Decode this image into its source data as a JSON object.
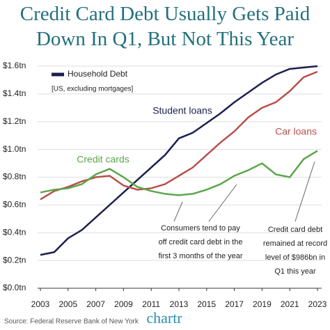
{
  "chart_data": {
    "type": "line",
    "title": "Credit Card Debt Usually Gets Paid Down In Q1, But Not This Year",
    "legend_title": "Household Debt",
    "subtitle": "[US, excluding mortgages]",
    "x": [
      2003,
      2004,
      2005,
      2006,
      2007,
      2008,
      2009,
      2010,
      2011,
      2012,
      2013,
      2014,
      2015,
      2016,
      2017,
      2018,
      2019,
      2020,
      2021,
      2022,
      2023
    ],
    "series": [
      {
        "name": "Student loans",
        "color": "#1b1f4f",
        "values": [
          0.24,
          0.26,
          0.36,
          0.42,
          0.51,
          0.6,
          0.69,
          0.78,
          0.87,
          0.96,
          1.08,
          1.12,
          1.19,
          1.26,
          1.34,
          1.41,
          1.48,
          1.54,
          1.58,
          1.59,
          1.6
        ]
      },
      {
        "name": "Car loans",
        "color": "#b8504b",
        "values": [
          0.64,
          0.7,
          0.73,
          0.77,
          0.8,
          0.81,
          0.74,
          0.71,
          0.72,
          0.75,
          0.81,
          0.87,
          0.96,
          1.05,
          1.13,
          1.23,
          1.3,
          1.34,
          1.42,
          1.52,
          1.56
        ]
      },
      {
        "name": "Credit cards",
        "color": "#5ba64b",
        "values": [
          0.69,
          0.71,
          0.72,
          0.75,
          0.82,
          0.86,
          0.8,
          0.73,
          0.7,
          0.68,
          0.67,
          0.68,
          0.71,
          0.75,
          0.81,
          0.85,
          0.9,
          0.82,
          0.8,
          0.93,
          0.99
        ]
      }
    ],
    "xlim": [
      2003,
      2023
    ],
    "xticks": [
      2003,
      2005,
      2007,
      2009,
      2011,
      2013,
      2015,
      2017,
      2019,
      2021,
      2023
    ],
    "ylim": [
      0,
      1.6
    ],
    "yticks": [
      {
        "value": 0,
        "label": "$0.0tn"
      },
      {
        "value": 0.2,
        "label": "$0.2tn"
      },
      {
        "value": 0.4,
        "label": "$0.4tn"
      },
      {
        "value": 0.6,
        "label": "$0.6tn"
      },
      {
        "value": 0.8,
        "label": "$0.8tn"
      },
      {
        "value": 1.0,
        "label": "$1.0tn"
      },
      {
        "value": 1.2,
        "label": "$1.2tn"
      },
      {
        "value": 1.4,
        "label": "$1.4tn"
      },
      {
        "value": 1.6,
        "label": "$1.6tn"
      }
    ],
    "grid": true,
    "annotations": [
      [
        "Consumers tend to pay",
        "off credit card debt in the",
        "first 3 months of the year"
      ],
      [
        "Credit card debt",
        "remained at record",
        "level of $986bn in",
        "Q1 this year"
      ]
    ],
    "source": "Source: Federal Reserve Bank of New York",
    "brand": "chartr"
  }
}
